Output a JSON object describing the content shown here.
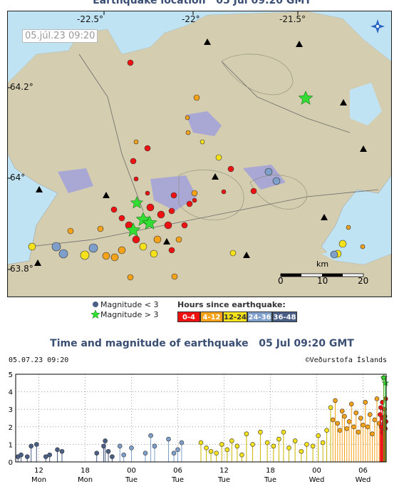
{
  "map": {
    "title": "Earthquake location   05 Jul 09:20 GMT",
    "date_label": "05.júl.23  09:20",
    "lon_ticks": [
      "-22.5°",
      "-22°",
      "-21.5°"
    ],
    "lat_ticks": [
      "64.2°",
      "64°",
      "63.8°"
    ],
    "scale_unit": "km",
    "scale_ticks": [
      "0",
      "10",
      "20"
    ],
    "compass_icon": "compass-star-icon",
    "colors": {
      "sea": "#bfe3f3",
      "land": "#d4cdb0",
      "lava": "#a9a8d4",
      "star": "#33dd33"
    }
  },
  "legend": {
    "mag_small": "Magnitude < 3",
    "mag_big": "Magnitude > 3",
    "hours_title": "Hours since earthquake:",
    "hours": [
      {
        "label": "0-4",
        "color": "#ee1111",
        "text": "#ffffff"
      },
      {
        "label": "4-12",
        "color": "#f5a21a",
        "text": "#ffffff"
      },
      {
        "label": "12-24",
        "color": "#f5e21a",
        "text": "#333333"
      },
      {
        "label": "24-36",
        "color": "#7f9fcb",
        "text": "#ffffff"
      },
      {
        "label": "36-48",
        "color": "#4a5f86",
        "text": "#ffffff"
      }
    ]
  },
  "timeseries": {
    "title": "Time and magnitude of earthquake   05 Jul 09:20 GMT",
    "date": "05.07.23  09:20",
    "credit": "©Veðurstofa Íslands"
  },
  "chart_data": {
    "type": "scatter",
    "title": "Time and magnitude of earthquake   05 Jul 09:20 GMT",
    "ylim": [
      0,
      5
    ],
    "y_ticks": [
      0,
      1,
      2,
      3,
      4,
      5
    ],
    "xlim_hours": [
      -48,
      0
    ],
    "x_ticks": [
      {
        "label": "12",
        "day": "Mon"
      },
      {
        "label": "18",
        "day": "Mon"
      },
      {
        "label": "00",
        "day": "Tue"
      },
      {
        "label": "06",
        "day": "Tue"
      },
      {
        "label": "12",
        "day": "Tue"
      },
      {
        "label": "18",
        "day": "Tue"
      },
      {
        "label": "00",
        "day": "Wed"
      },
      {
        "label": "06",
        "day": "Wed"
      }
    ],
    "grid": true,
    "series": [
      {
        "color": "#4a5f86",
        "points": [
          [
            -47.7,
            0.3
          ],
          [
            -47.3,
            0.4
          ],
          [
            -46.5,
            0.3
          ],
          [
            -46.0,
            0.9
          ],
          [
            -45.3,
            1.0
          ],
          [
            -44.1,
            0.3
          ],
          [
            -43.6,
            0.4
          ],
          [
            -42.6,
            0.7
          ],
          [
            -42.0,
            0.6
          ],
          [
            -37.5,
            0.5
          ],
          [
            -36.6,
            0.9
          ],
          [
            -36.4,
            1.2
          ],
          [
            -36.0,
            0.6
          ],
          [
            -35.5,
            0.3
          ]
        ]
      },
      {
        "color": "#7f9fcb",
        "points": [
          [
            -34.5,
            0.9
          ],
          [
            -34.0,
            0.4
          ],
          [
            -33.0,
            0.8
          ],
          [
            -31.2,
            0.5
          ],
          [
            -30.5,
            1.5
          ],
          [
            -30.0,
            0.9
          ],
          [
            -28.2,
            1.3
          ],
          [
            -27.5,
            0.5
          ],
          [
            -27.0,
            0.7
          ],
          [
            -26.5,
            1.1
          ]
        ]
      },
      {
        "color": "#f5e21a",
        "points": [
          [
            -24.0,
            1.1
          ],
          [
            -23.3,
            0.8
          ],
          [
            -22.7,
            0.6
          ],
          [
            -22.0,
            0.5
          ],
          [
            -21.3,
            1.0
          ],
          [
            -20.6,
            0.7
          ],
          [
            -20.0,
            1.2
          ],
          [
            -19.3,
            0.9
          ],
          [
            -18.7,
            0.4
          ],
          [
            -18.1,
            1.6
          ],
          [
            -17.3,
            1.0
          ],
          [
            -16.3,
            1.7
          ],
          [
            -15.4,
            1.1
          ],
          [
            -14.6,
            0.9
          ],
          [
            -13.9,
            1.3
          ],
          [
            -13.3,
            1.7
          ],
          [
            -12.6,
            0.8
          ],
          [
            -11.8,
            1.2
          ],
          [
            -11.0,
            0.6
          ],
          [
            -10.3,
            1.0
          ],
          [
            -9.5,
            0.9
          ],
          [
            -8.8,
            1.5
          ],
          [
            -8.2,
            1.1
          ],
          [
            -7.7,
            1.8
          ],
          [
            -7.2,
            3.1
          ]
        ]
      },
      {
        "color": "#f5a21a",
        "points": [
          [
            -6.9,
            2.4
          ],
          [
            -6.6,
            3.5
          ],
          [
            -6.3,
            2.2
          ],
          [
            -6.0,
            1.8
          ],
          [
            -5.7,
            2.9
          ],
          [
            -5.4,
            2.6
          ],
          [
            -5.1,
            1.9
          ],
          [
            -4.8,
            2.3
          ],
          [
            -4.5,
            3.3
          ],
          [
            -4.2,
            2.0
          ],
          [
            -3.9,
            2.8
          ],
          [
            -3.6,
            1.7
          ],
          [
            -3.3,
            2.5
          ],
          [
            -3.0,
            2.1
          ],
          [
            -2.7,
            3.4
          ],
          [
            -2.4,
            2.0
          ],
          [
            -2.1,
            2.7
          ],
          [
            -1.8,
            1.6
          ],
          [
            -1.5,
            2.4
          ],
          [
            -1.2,
            3.6
          ],
          [
            -0.9,
            2.2
          ]
        ]
      },
      {
        "color": "#ee1111",
        "points": [
          [
            -0.8,
            2.7
          ],
          [
            -0.7,
            3.1
          ],
          [
            -0.6,
            2.0
          ],
          [
            -0.5,
            3.4
          ],
          [
            -0.45,
            2.5
          ],
          [
            -0.4,
            1.7
          ],
          [
            -0.33,
            4.8
          ],
          [
            -0.28,
            2.2
          ],
          [
            -0.22,
            3.0
          ],
          [
            -0.17,
            2.6
          ],
          [
            -0.12,
            1.9
          ],
          [
            -0.07,
            3.6
          ],
          [
            -0.03,
            2.3
          ]
        ]
      },
      {
        "color": "#33dd33",
        "points": [
          [
            -0.3,
            4.8
          ],
          [
            -0.1,
            4.5
          ]
        ]
      }
    ]
  }
}
